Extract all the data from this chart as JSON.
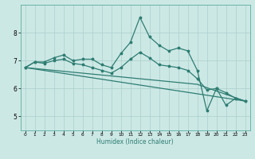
{
  "xlabel": "Humidex (Indice chaleur)",
  "ylabel": "",
  "bg_color": "#cce8e5",
  "grid_color": "#aacfcc",
  "line_color": "#2e7d72",
  "xlim": [
    -0.5,
    23.5
  ],
  "ylim": [
    4.5,
    9.0
  ],
  "yticks": [
    5,
    6,
    7,
    8
  ],
  "xticks": [
    0,
    1,
    2,
    3,
    4,
    5,
    6,
    7,
    8,
    9,
    10,
    11,
    12,
    13,
    14,
    15,
    16,
    17,
    18,
    19,
    20,
    21,
    22,
    23
  ],
  "curve1_x": [
    0,
    1,
    2,
    3,
    4,
    5,
    6,
    7,
    8,
    9,
    10,
    11,
    12,
    13,
    14,
    15,
    16,
    17,
    18,
    19,
    20,
    21,
    22,
    23
  ],
  "curve1_y": [
    6.75,
    6.95,
    6.95,
    7.1,
    7.2,
    7.0,
    7.05,
    7.05,
    6.85,
    6.75,
    7.25,
    7.65,
    8.55,
    7.85,
    7.55,
    7.35,
    7.45,
    7.35,
    6.65,
    5.2,
    6.0,
    5.4,
    5.65,
    5.55
  ],
  "curve2_x": [
    0,
    1,
    2,
    3,
    4,
    5,
    6,
    7,
    8,
    9,
    10,
    11,
    12,
    13,
    14,
    15,
    16,
    17,
    18,
    19,
    20,
    21,
    22,
    23
  ],
  "curve2_y": [
    6.75,
    6.95,
    6.9,
    7.0,
    7.05,
    6.9,
    6.85,
    6.75,
    6.65,
    6.55,
    6.75,
    7.05,
    7.3,
    7.1,
    6.85,
    6.8,
    6.75,
    6.65,
    6.35,
    5.95,
    6.0,
    5.85,
    5.65,
    5.55
  ],
  "curve3_x": [
    0,
    18,
    23
  ],
  "curve3_y": [
    6.75,
    6.15,
    5.55
  ],
  "curve4_x": [
    0,
    23
  ],
  "curve4_y": [
    6.75,
    5.55
  ],
  "marker_size": 2.5,
  "linewidth": 0.9
}
